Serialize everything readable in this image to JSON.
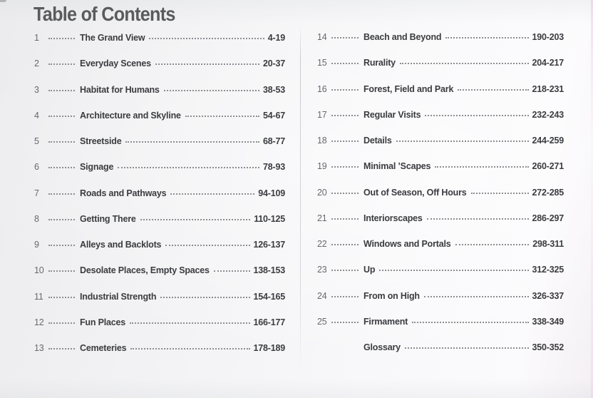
{
  "page": {
    "title": "Table of Contents"
  },
  "toc": {
    "columns": [
      {
        "entries": [
          {
            "num": "1",
            "title": "The Grand View",
            "pages": "4-19"
          },
          {
            "num": "2",
            "title": "Everyday Scenes",
            "pages": "20-37"
          },
          {
            "num": "3",
            "title": "Habitat for Humans",
            "pages": "38-53"
          },
          {
            "num": "4",
            "title": "Architecture and Skyline",
            "pages": "54-67"
          },
          {
            "num": "5",
            "title": "Streetside",
            "pages": "68-77"
          },
          {
            "num": "6",
            "title": "Signage",
            "pages": "78-93"
          },
          {
            "num": "7",
            "title": "Roads and Pathways",
            "pages": "94-109"
          },
          {
            "num": "8",
            "title": "Getting There",
            "pages": "110-125"
          },
          {
            "num": "9",
            "title": "Alleys and Backlots",
            "pages": "126-137"
          },
          {
            "num": "10",
            "title": "Desolate Places, Empty Spaces",
            "pages": "138-153"
          },
          {
            "num": "11",
            "title": "Industrial Strength",
            "pages": "154-165"
          },
          {
            "num": "12",
            "title": "Fun Places",
            "pages": "166-177"
          },
          {
            "num": "13",
            "title": "Cemeteries",
            "pages": "178-189"
          }
        ]
      },
      {
        "entries": [
          {
            "num": "14",
            "title": "Beach and Beyond",
            "pages": "190-203"
          },
          {
            "num": "15",
            "title": "Rurality",
            "pages": "204-217"
          },
          {
            "num": "16",
            "title": "Forest, Field and Park",
            "pages": "218-231"
          },
          {
            "num": "17",
            "title": "Regular Visits",
            "pages": "232-243"
          },
          {
            "num": "18",
            "title": "Details",
            "pages": "244-259"
          },
          {
            "num": "19",
            "title": "Minimal ’Scapes",
            "pages": "260-271"
          },
          {
            "num": "20",
            "title": "Out of Season, Off Hours",
            "pages": "272-285"
          },
          {
            "num": "21",
            "title": "Interiorscapes",
            "pages": "286-297"
          },
          {
            "num": "22",
            "title": "Windows and Portals",
            "pages": "298-311"
          },
          {
            "num": "23",
            "title": "Up",
            "pages": "312-325"
          },
          {
            "num": "24",
            "title": "From on High",
            "pages": "326-337"
          },
          {
            "num": "25",
            "title": "Firmament",
            "pages": "338-349"
          },
          {
            "num": "",
            "title": "Glossary",
            "pages": "350-352"
          }
        ]
      }
    ]
  },
  "colors": {
    "title_text": "#5a5b5f",
    "entry_text": "#3b3c40",
    "number_text": "#67686d",
    "dot_leader": "#8d8e92",
    "paper": "#f2f2f4"
  }
}
